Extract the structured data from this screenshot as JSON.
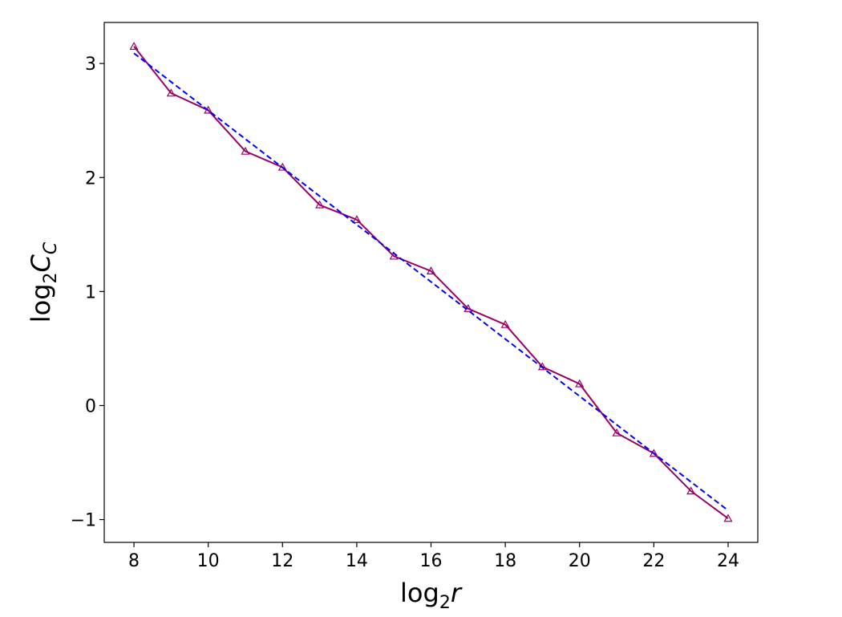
{
  "chart_data": {
    "type": "line",
    "xlabel": [
      "log",
      "2",
      "r"
    ],
    "ylabel": [
      "log",
      "2",
      "C",
      "C"
    ],
    "xlim": [
      7.2,
      24.8
    ],
    "ylim": [
      -1.2,
      3.36
    ],
    "xticks": [
      8,
      10,
      12,
      14,
      16,
      18,
      20,
      22,
      24
    ],
    "yticks": [
      {
        "value": -1,
        "label": "−1"
      },
      0,
      1,
      2,
      3
    ],
    "series": [
      {
        "color": "#990066",
        "marker": "triangle",
        "dash": false,
        "x": [
          8,
          9,
          10,
          11,
          12,
          13,
          14,
          15,
          16,
          17,
          18,
          19,
          20,
          21,
          22,
          23,
          24
        ],
        "values": [
          3.15,
          2.74,
          2.59,
          2.23,
          2.09,
          1.76,
          1.63,
          1.31,
          1.18,
          0.85,
          0.71,
          0.34,
          0.19,
          -0.24,
          -0.42,
          -0.75,
          -0.99
        ]
      },
      {
        "color": "#0000ff",
        "marker": null,
        "dash": true,
        "x": [
          8,
          24
        ],
        "values": [
          3.09,
          -0.92
        ]
      }
    ]
  }
}
